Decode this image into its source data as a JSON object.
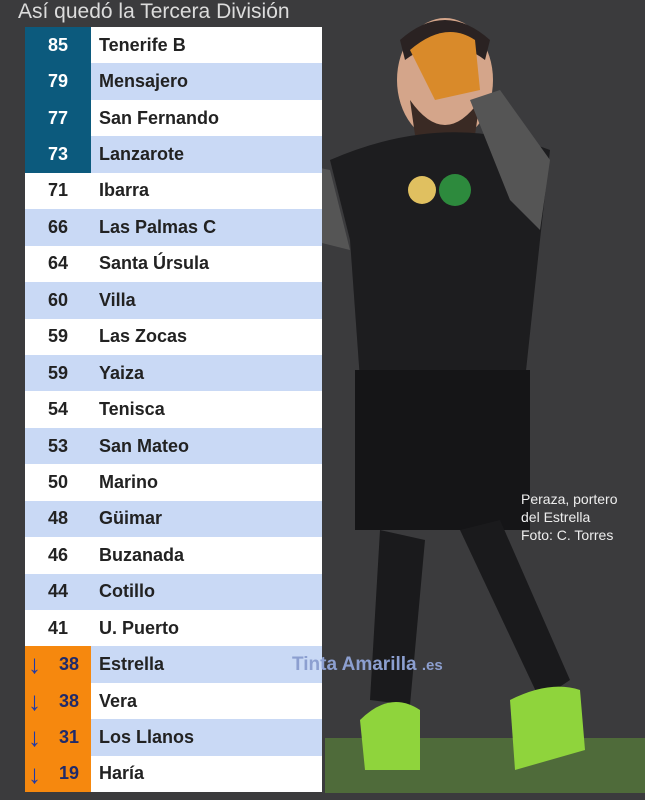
{
  "title": "Así quedó la Tercera División",
  "standings": [
    {
      "points": "85",
      "team": "Tenerife B",
      "zone": "top"
    },
    {
      "points": "79",
      "team": "Mensajero",
      "zone": "top"
    },
    {
      "points": "77",
      "team": "San Fernando",
      "zone": "top"
    },
    {
      "points": "73",
      "team": "Lanzarote",
      "zone": "top"
    },
    {
      "points": "71",
      "team": "Ibarra",
      "zone": ""
    },
    {
      "points": "66",
      "team": "Las Palmas C",
      "zone": ""
    },
    {
      "points": "64",
      "team": "Santa Úrsula",
      "zone": ""
    },
    {
      "points": "60",
      "team": "Villa",
      "zone": ""
    },
    {
      "points": "59",
      "team": "Las Zocas",
      "zone": ""
    },
    {
      "points": "59",
      "team": "Yaiza",
      "zone": ""
    },
    {
      "points": "54",
      "team": "Tenisca",
      "zone": ""
    },
    {
      "points": "53",
      "team": "San Mateo",
      "zone": ""
    },
    {
      "points": "50",
      "team": "Marino",
      "zone": ""
    },
    {
      "points": "48",
      "team": "Güimar",
      "zone": ""
    },
    {
      "points": "46",
      "team": "Buzanada",
      "zone": ""
    },
    {
      "points": "44",
      "team": "Cotillo",
      "zone": ""
    },
    {
      "points": "41",
      "team": "U. Puerto",
      "zone": ""
    },
    {
      "points": "38",
      "team": "Estrella",
      "zone": "down"
    },
    {
      "points": "38",
      "team": "Vera",
      "zone": "down"
    },
    {
      "points": "31",
      "team": "Los Llanos",
      "zone": "down"
    },
    {
      "points": "19",
      "team": "Haría",
      "zone": "down"
    }
  ],
  "caption": [
    "Peraza, portero",
    "del Estrella",
    "Foto: C. Torres"
  ],
  "watermark": {
    "name": "Tinta Amarilla",
    "tld": ".es"
  },
  "colors": {
    "top": "#0c5a7d",
    "down": "#f6880e",
    "alt_row": "#c9d9f5",
    "background": "#3b3b3d"
  },
  "icons": {
    "relegation": "arrow-down-icon"
  }
}
